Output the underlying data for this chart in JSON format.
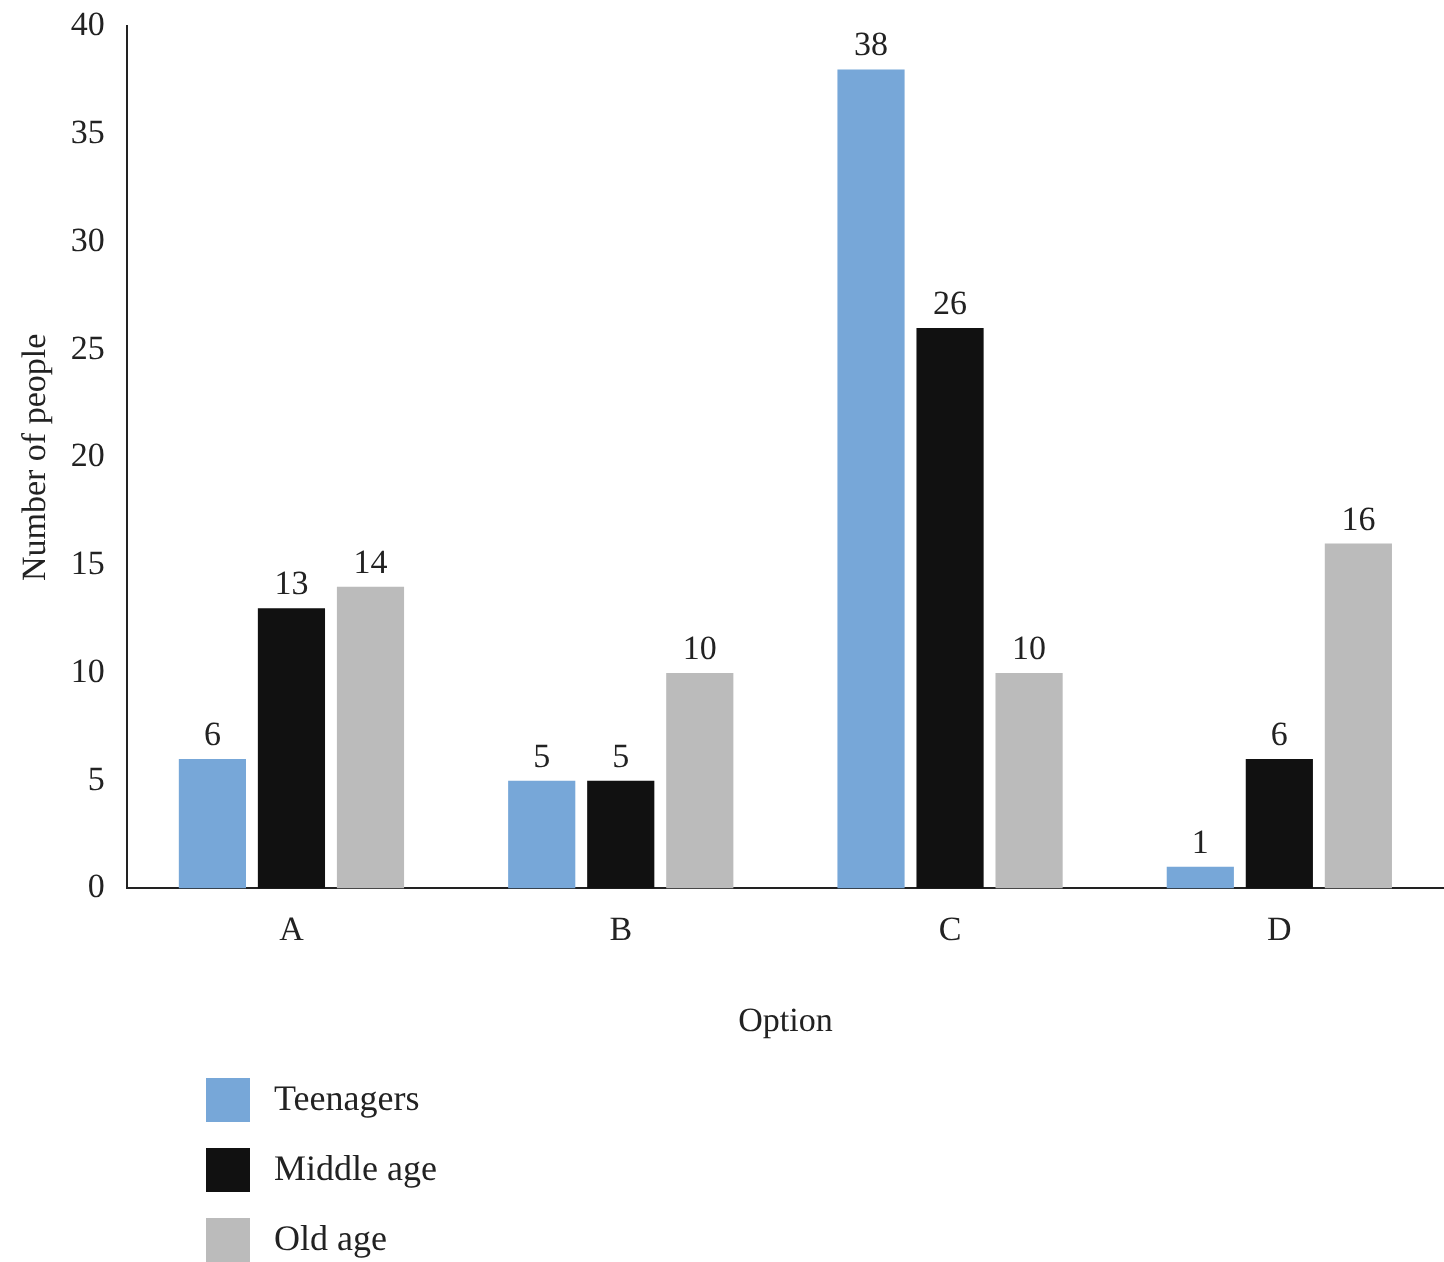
{
  "chart_data": {
    "type": "bar",
    "xlabel": "Option",
    "ylabel": "Number of people",
    "categories": [
      "A",
      "B",
      "C",
      "D"
    ],
    "series": [
      {
        "name": "Teenagers",
        "color": "#77a7d8",
        "values": [
          6,
          5,
          38,
          1
        ]
      },
      {
        "name": "Middle age",
        "color": "#111111",
        "values": [
          13,
          5,
          26,
          6
        ]
      },
      {
        "name": "Old age",
        "color": "#bbbbbb",
        "values": [
          14,
          10,
          10,
          16
        ]
      }
    ],
    "ylim": [
      0,
      40
    ],
    "yticks": [
      0,
      5,
      10,
      15,
      20,
      25,
      30,
      35,
      40
    ],
    "grid": false,
    "legend": "bottom left",
    "data_labels": true
  }
}
